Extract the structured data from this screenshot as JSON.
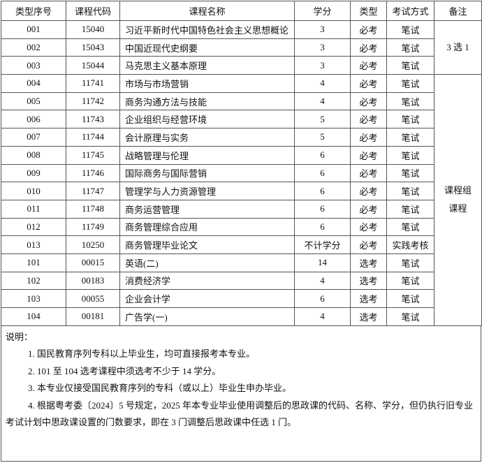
{
  "table": {
    "header": [
      "类型序号",
      "课程代码",
      "课程名称",
      "学分",
      "类型",
      "考试方式",
      "备注"
    ],
    "rows": [
      [
        "001",
        "15040",
        "习近平新时代中国特色社会主义思想概论",
        "3",
        "必考",
        "笔试"
      ],
      [
        "002",
        "15043",
        "中国近现代史纲要",
        "3",
        "必考",
        "笔试"
      ],
      [
        "003",
        "15044",
        "马克思主义基本原理",
        "3",
        "必考",
        "笔试"
      ],
      [
        "004",
        "11741",
        "市场与市场营销",
        "4",
        "必考",
        "笔试"
      ],
      [
        "005",
        "11742",
        "商务沟通方法与技能",
        "4",
        "必考",
        "笔试"
      ],
      [
        "006",
        "11743",
        "企业组织与经营环境",
        "5",
        "必考",
        "笔试"
      ],
      [
        "007",
        "11744",
        "会计原理与实务",
        "5",
        "必考",
        "笔试"
      ],
      [
        "008",
        "11745",
        "战略管理与伦理",
        "6",
        "必考",
        "笔试"
      ],
      [
        "009",
        "11746",
        "国际商务与国际营销",
        "6",
        "必考",
        "笔试"
      ],
      [
        "010",
        "11747",
        "管理学与人力资源管理",
        "6",
        "必考",
        "笔试"
      ],
      [
        "011",
        "11748",
        "商务运营管理",
        "6",
        "必考",
        "笔试"
      ],
      [
        "012",
        "11749",
        "商务管理综合应用",
        "6",
        "必考",
        "笔试"
      ],
      [
        "013",
        "10250",
        "商务管理毕业论文",
        "不计学分",
        "必考",
        "实践考核"
      ],
      [
        "101",
        "00015",
        "英语(二)",
        "14",
        "选考",
        "笔试"
      ],
      [
        "102",
        "00183",
        "消费经济学",
        "4",
        "选考",
        "笔试"
      ],
      [
        "103",
        "00055",
        "企业会计学",
        "6",
        "选考",
        "笔试"
      ],
      [
        "104",
        "00181",
        "广告学(一)",
        "4",
        "选考",
        "笔试"
      ]
    ],
    "remarks": [
      [
        "3 选 1"
      ],
      [
        "课程组",
        "课程"
      ]
    ]
  },
  "notes": {
    "title": "说明：",
    "items": [
      "1. 国民教育序列专科以上毕业生，均可直接报考本专业。",
      "2. 101 至 104 选考课程中须选考不少于 14 学分。",
      "3. 本专业仅接受国民教育序列的专科（或以上）毕业生申办毕业。",
      "4. 根据粤考委〔2024〕5 号规定，2025 年本专业毕业使用调整后的思政课的代码、名称、学分，但仍执行旧专业考试计划中思政课设置的门数要求，即在 3 门调整后思政课中任选 1 门。"
    ]
  }
}
